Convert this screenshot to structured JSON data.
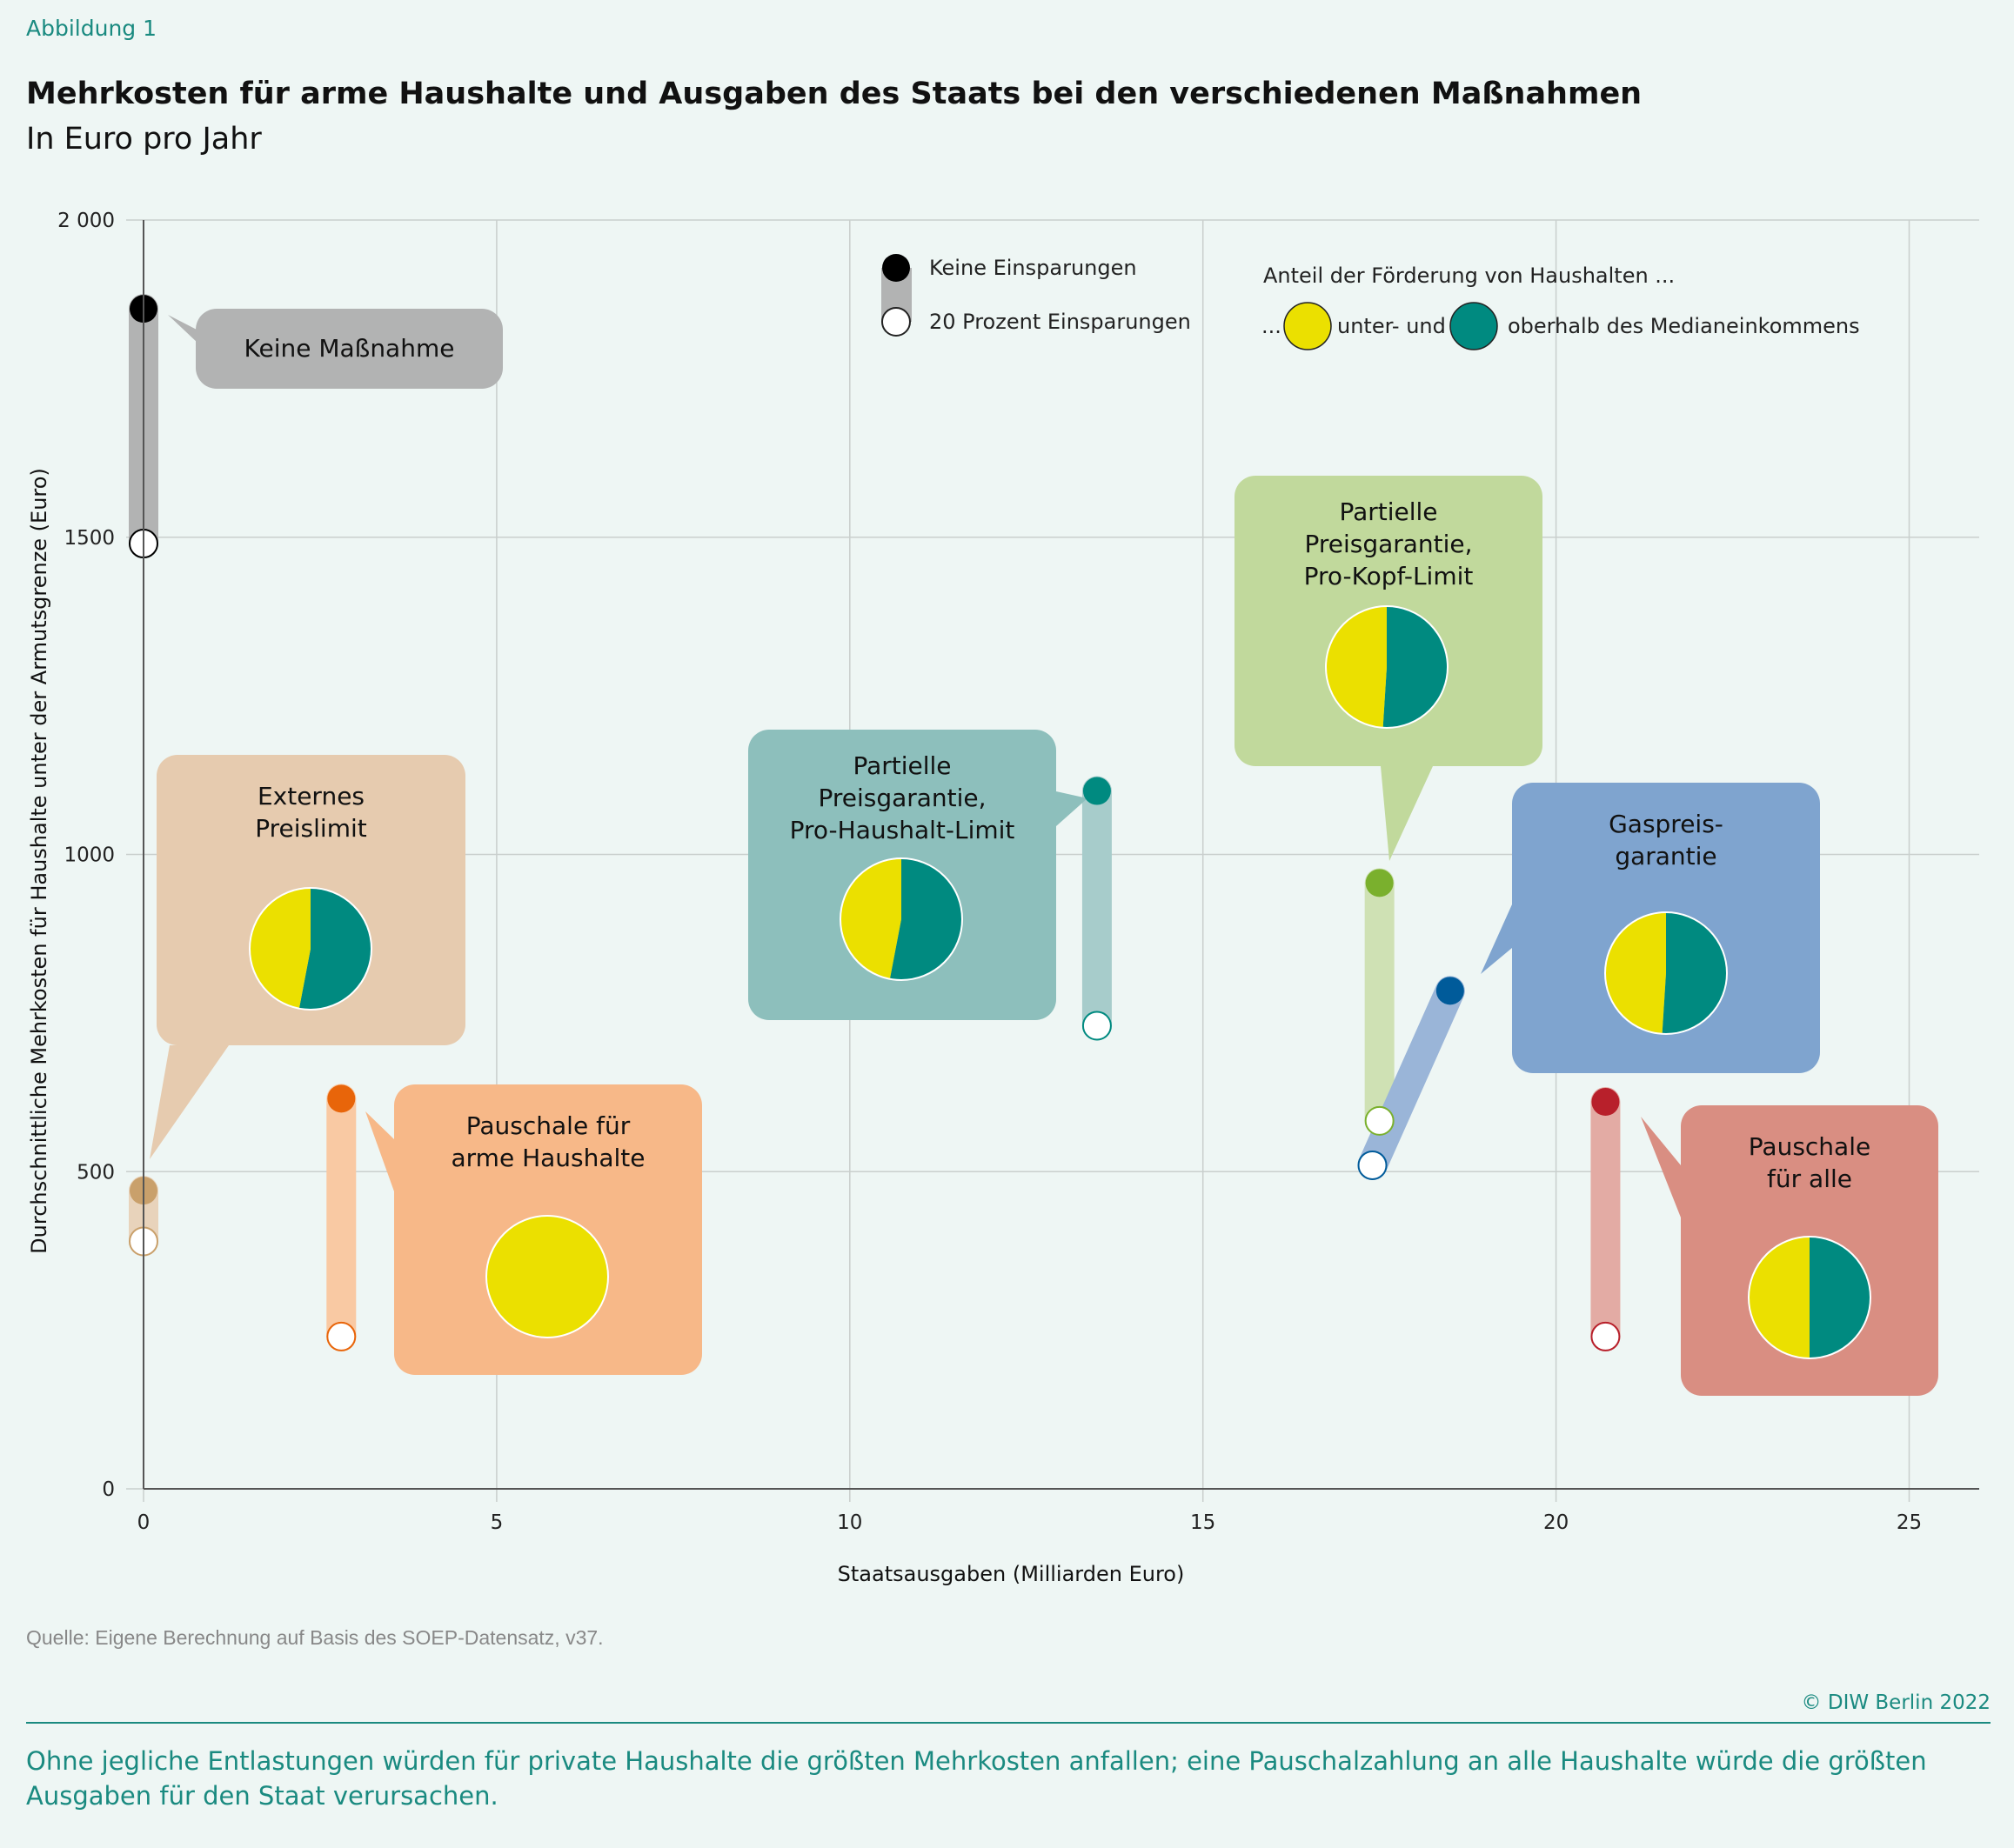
{
  "header": {
    "label": "Abbildung 1",
    "title": "Mehrkosten für arme Haushalte und Ausgaben des Staats bei den verschiedenen Maßnahmen",
    "subtitle": "In Euro pro Jahr"
  },
  "footer": {
    "source": "Quelle: Eigene Berechnung auf Basis des SOEP-Datensatz, v37.",
    "copyright": "© DIW Berlin 2022",
    "summary": "Ohne jegliche Entlastungen würden für private Haushalte die größten Mehrkosten anfallen; eine Pauschalzahlung an alle Haushalte würde die größten Ausgaben für den Staat verursachen."
  },
  "chart_data": {
    "type": "scatter",
    "xlabel": "Staatsausgaben (Milliarden Euro)",
    "ylabel": "Durchschnittliche Mehrkosten für Haushalte unter der Armutsgrenze (Euro)",
    "xlim": [
      0,
      25
    ],
    "ylim": [
      0,
      2000
    ],
    "xticks": [
      0,
      5,
      10,
      15,
      20,
      25
    ],
    "yticks": [
      0,
      500,
      1000,
      1500,
      2000
    ],
    "ytick_labels": [
      "0",
      "500",
      "1000",
      "1500",
      "2 000"
    ],
    "grid": true,
    "legend": {
      "no_savings": "Keine Einsparungen",
      "savings_20": "20 Prozent Einsparungen",
      "share_title": "Anteil der Förderung von Haushalten ...",
      "share_prefix": "...",
      "below": "unter- und",
      "above": "oberhalb des Medianeinkommens",
      "below_color": "#ebe000",
      "above_color": "#008a80"
    },
    "measures": [
      {
        "name": "Keine Maßnahme",
        "label_lines": [
          "Keine Maßnahme"
        ],
        "color": "#000000",
        "bar_color": "#b2b3b3",
        "bubble_color": "#b2b3b3",
        "no_savings": {
          "x": 0,
          "y": 1860
        },
        "savings_20": {
          "x": 0,
          "y": 1490
        },
        "share_below_median": null
      },
      {
        "name": "Externes Preislimit",
        "label_lines": [
          "Externes",
          "Preislimit"
        ],
        "color": "#c9a06b",
        "bar_color": "#e8d3bb",
        "bubble_color": "#e6cbaf",
        "no_savings": {
          "x": 0,
          "y": 470
        },
        "savings_20": {
          "x": 0,
          "y": 390
        },
        "share_below_median": 0.47
      },
      {
        "name": "Pauschale für arme Haushalte",
        "label_lines": [
          "Pauschale für",
          "arme Haushalte"
        ],
        "color": "#e8650a",
        "bar_color": "#f9c9a3",
        "bubble_color": "#f7b888",
        "no_savings": {
          "x": 2.8,
          "y": 615
        },
        "savings_20": {
          "x": 2.8,
          "y": 240
        },
        "share_below_median": 1.0
      },
      {
        "name": "Partielle Preisgarantie, Pro-Haushalt-Limit",
        "label_lines": [
          "Partielle",
          "Preisgarantie,",
          "Pro-Haushalt-Limit"
        ],
        "color": "#008a80",
        "bar_color": "#a7cccb",
        "bubble_color": "#8dbfbc",
        "no_savings": {
          "x": 13.5,
          "y": 1100
        },
        "savings_20": {
          "x": 13.5,
          "y": 730
        },
        "share_below_median": 0.47
      },
      {
        "name": "Partielle Preisgarantie, Pro-Kopf-Limit",
        "label_lines": [
          "Partielle",
          "Preisgarantie,",
          "Pro-Kopf-Limit"
        ],
        "color": "#7ab02d",
        "bar_color": "#cfe1b4",
        "bubble_color": "#c1d99c",
        "no_savings": {
          "x": 17.5,
          "y": 955
        },
        "savings_20": {
          "x": 17.5,
          "y": 580
        },
        "share_below_median": 0.49
      },
      {
        "name": "Gaspreisgarantie",
        "label_lines": [
          "Gaspreis-",
          "garantie"
        ],
        "color": "#005b9a",
        "bar_color": "#9ab5d8",
        "bubble_color": "#7fa4cf",
        "no_savings": {
          "x": 18.5,
          "y": 785
        },
        "savings_20": {
          "x": 17.4,
          "y": 510
        },
        "share_below_median": 0.49
      },
      {
        "name": "Pauschale für alle",
        "label_lines": [
          "Pauschale",
          "für alle"
        ],
        "color": "#b8202b",
        "bar_color": "#e3aba4",
        "bubble_color": "#d98e82",
        "no_savings": {
          "x": 20.7,
          "y": 610
        },
        "savings_20": {
          "x": 20.7,
          "y": 240
        },
        "share_below_median": 0.5
      }
    ]
  }
}
